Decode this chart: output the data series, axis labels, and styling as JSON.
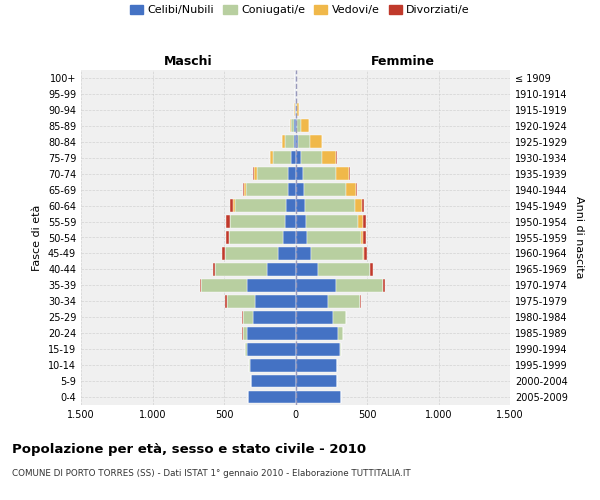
{
  "age_groups": [
    "0-4",
    "5-9",
    "10-14",
    "15-19",
    "20-24",
    "25-29",
    "30-34",
    "35-39",
    "40-44",
    "45-49",
    "50-54",
    "55-59",
    "60-64",
    "65-69",
    "70-74",
    "75-79",
    "80-84",
    "85-89",
    "90-94",
    "95-99",
    "100+"
  ],
  "birth_years": [
    "2005-2009",
    "2000-2004",
    "1995-1999",
    "1990-1994",
    "1985-1989",
    "1980-1984",
    "1975-1979",
    "1970-1974",
    "1965-1969",
    "1960-1964",
    "1955-1959",
    "1950-1954",
    "1945-1949",
    "1940-1944",
    "1935-1939",
    "1930-1934",
    "1925-1929",
    "1920-1924",
    "1915-1919",
    "1910-1914",
    "≤ 1909"
  ],
  "maschi": {
    "celibi": [
      330,
      310,
      320,
      340,
      340,
      300,
      280,
      340,
      200,
      120,
      85,
      75,
      65,
      55,
      50,
      30,
      12,
      8,
      4,
      2,
      2
    ],
    "coniugati": [
      1,
      1,
      2,
      10,
      30,
      70,
      200,
      320,
      360,
      370,
      380,
      380,
      360,
      290,
      220,
      130,
      60,
      20,
      2,
      0,
      0
    ],
    "vedovi": [
      0,
      0,
      0,
      0,
      0,
      0,
      0,
      0,
      1,
      2,
      3,
      5,
      10,
      15,
      20,
      20,
      20,
      10,
      2,
      0,
      0
    ],
    "divorziati": [
      0,
      0,
      0,
      1,
      2,
      5,
      10,
      10,
      15,
      20,
      20,
      25,
      20,
      10,
      5,
      0,
      0,
      0,
      0,
      0,
      0
    ]
  },
  "femmine": {
    "nubili": [
      320,
      290,
      290,
      310,
      300,
      260,
      230,
      280,
      160,
      110,
      80,
      70,
      65,
      60,
      55,
      35,
      18,
      12,
      5,
      2,
      2
    ],
    "coniugate": [
      1,
      1,
      2,
      10,
      30,
      90,
      220,
      330,
      360,
      360,
      380,
      370,
      350,
      290,
      230,
      150,
      80,
      25,
      5,
      0,
      0
    ],
    "vedove": [
      0,
      0,
      0,
      0,
      0,
      0,
      1,
      2,
      4,
      8,
      15,
      30,
      50,
      70,
      90,
      100,
      90,
      60,
      15,
      3,
      1
    ],
    "divorziate": [
      0,
      0,
      0,
      1,
      2,
      5,
      10,
      15,
      20,
      20,
      20,
      20,
      15,
      10,
      5,
      2,
      0,
      0,
      0,
      0,
      0
    ]
  },
  "colors": {
    "celibi": "#4472c4",
    "coniugati": "#b8cfa0",
    "vedovi": "#f0b84a",
    "divorziati": "#c0392b"
  },
  "xlim": 1500,
  "title": "Popolazione per età, sesso e stato civile - 2010",
  "subtitle": "COMUNE DI PORTO TORRES (SS) - Dati ISTAT 1° gennaio 2010 - Elaborazione TUTTITALIA.IT",
  "ylabel_left": "Fasce di età",
  "ylabel_right": "Anni di nascita",
  "xlabel_left": "Maschi",
  "xlabel_right": "Femmine",
  "bg_color": "#f0f0f0",
  "grid_color": "#cccccc"
}
